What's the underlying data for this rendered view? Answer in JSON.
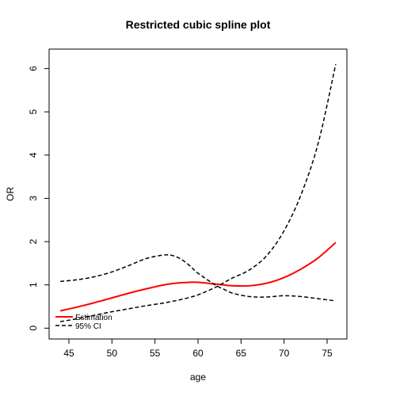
{
  "chart_data": {
    "type": "line",
    "title": "Restricted cubic spline plot",
    "xlabel": "age",
    "ylabel": "OR",
    "xlim": [
      42.7,
      77.3
    ],
    "ylim": [
      -0.25,
      6.45
    ],
    "x_ticks": [
      45,
      50,
      55,
      60,
      65,
      70,
      75
    ],
    "y_ticks": [
      0,
      1,
      2,
      3,
      4,
      5,
      6
    ],
    "grid": false,
    "legend_position": "bottom-left",
    "x": [
      44,
      46,
      48,
      50,
      52,
      54,
      56,
      57,
      58,
      59,
      60,
      62,
      63,
      64,
      66,
      68,
      70,
      72,
      74,
      76
    ],
    "series": [
      {
        "name": "Estimation",
        "color": "#ff0000",
        "style": "solid",
        "values": [
          0.4,
          0.49,
          0.59,
          0.7,
          0.81,
          0.91,
          1.0,
          1.03,
          1.05,
          1.06,
          1.06,
          1.02,
          1.0,
          0.98,
          0.98,
          1.04,
          1.17,
          1.37,
          1.63,
          1.98
        ]
      },
      {
        "name": "95% CI",
        "color": "#000000",
        "style": "dashed",
        "values": [
          1.08,
          1.12,
          1.19,
          1.3,
          1.45,
          1.61,
          1.69,
          1.68,
          1.6,
          1.45,
          1.27,
          1.0,
          0.9,
          0.81,
          0.73,
          0.72,
          0.75,
          0.73,
          0.68,
          0.63
        ]
      },
      {
        "name": "95% CI",
        "color": "#000000",
        "style": "dashed",
        "values": [
          0.15,
          0.22,
          0.3,
          0.38,
          0.45,
          0.52,
          0.58,
          0.62,
          0.66,
          0.71,
          0.77,
          0.94,
          1.05,
          1.16,
          1.35,
          1.68,
          2.25,
          3.1,
          4.3,
          6.1
        ]
      }
    ]
  }
}
